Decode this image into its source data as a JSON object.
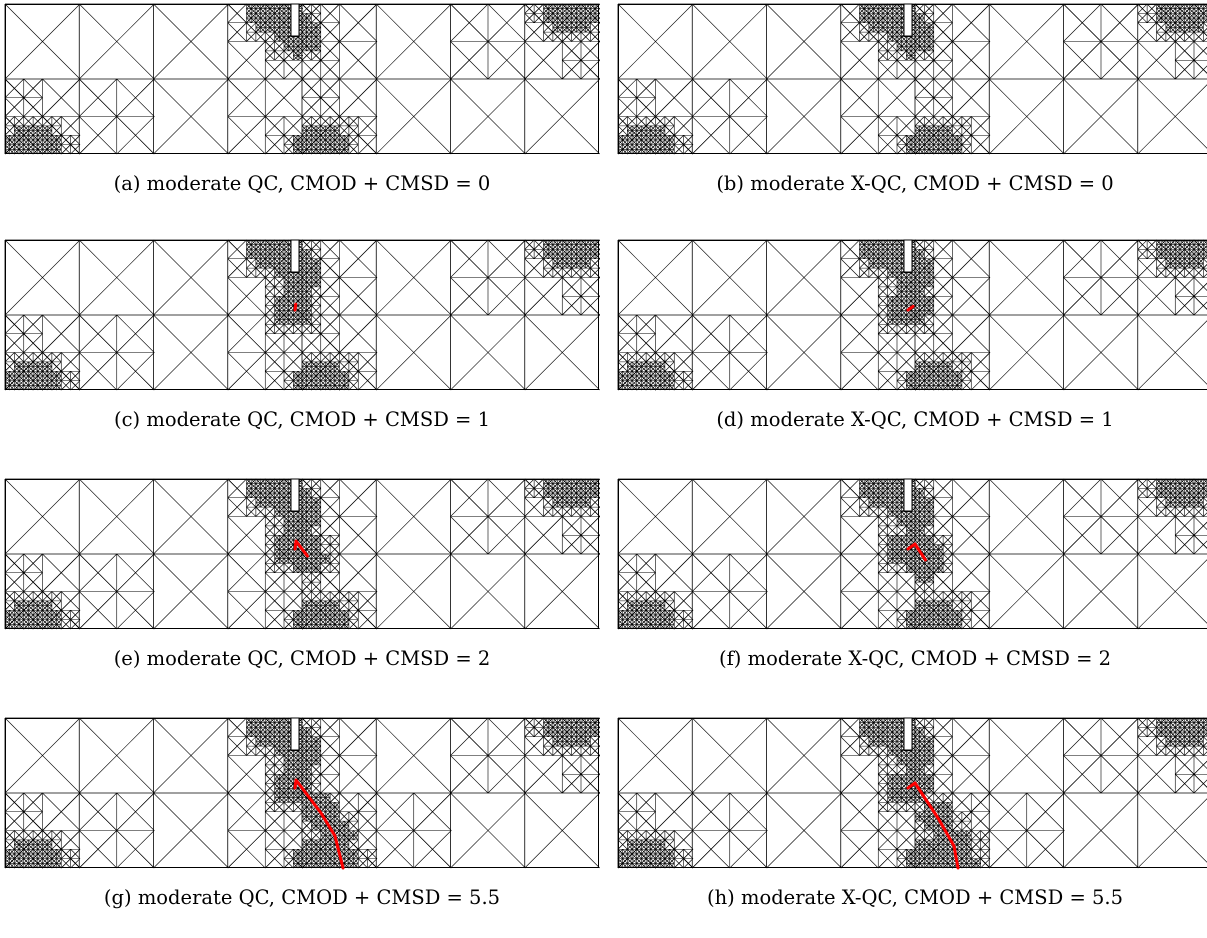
{
  "figure": {
    "panels": [
      {
        "caption": "(a) moderate QC, CMOD + CMSD = 0",
        "method": "QC",
        "load": 0
      },
      {
        "caption": "(b) moderate X-QC, CMOD + CMSD = 0",
        "method": "X-QC",
        "load": 0
      },
      {
        "caption": "(c) moderate QC, CMOD + CMSD = 1",
        "method": "QC",
        "load": 1
      },
      {
        "caption": "(d) moderate X-QC, CMOD + CMSD = 1",
        "method": "X-QC",
        "load": 1
      },
      {
        "caption": "(e) moderate QC, CMOD + CMSD = 2",
        "method": "QC",
        "load": 2
      },
      {
        "caption": "(f) moderate X-QC, CMOD + CMSD = 2",
        "method": "X-QC",
        "load": 2
      },
      {
        "caption": "(g) moderate QC, CMOD + CMSD = 5.5",
        "method": "QC",
        "load": 5.5
      },
      {
        "caption": "(h) moderate X-QC, CMOD + CMSD = 5.5",
        "method": "X-QC",
        "load": 5.5
      }
    ]
  },
  "colors": {
    "mesh": "#000000",
    "crack": "#ff0000",
    "background": "#ffffff"
  }
}
